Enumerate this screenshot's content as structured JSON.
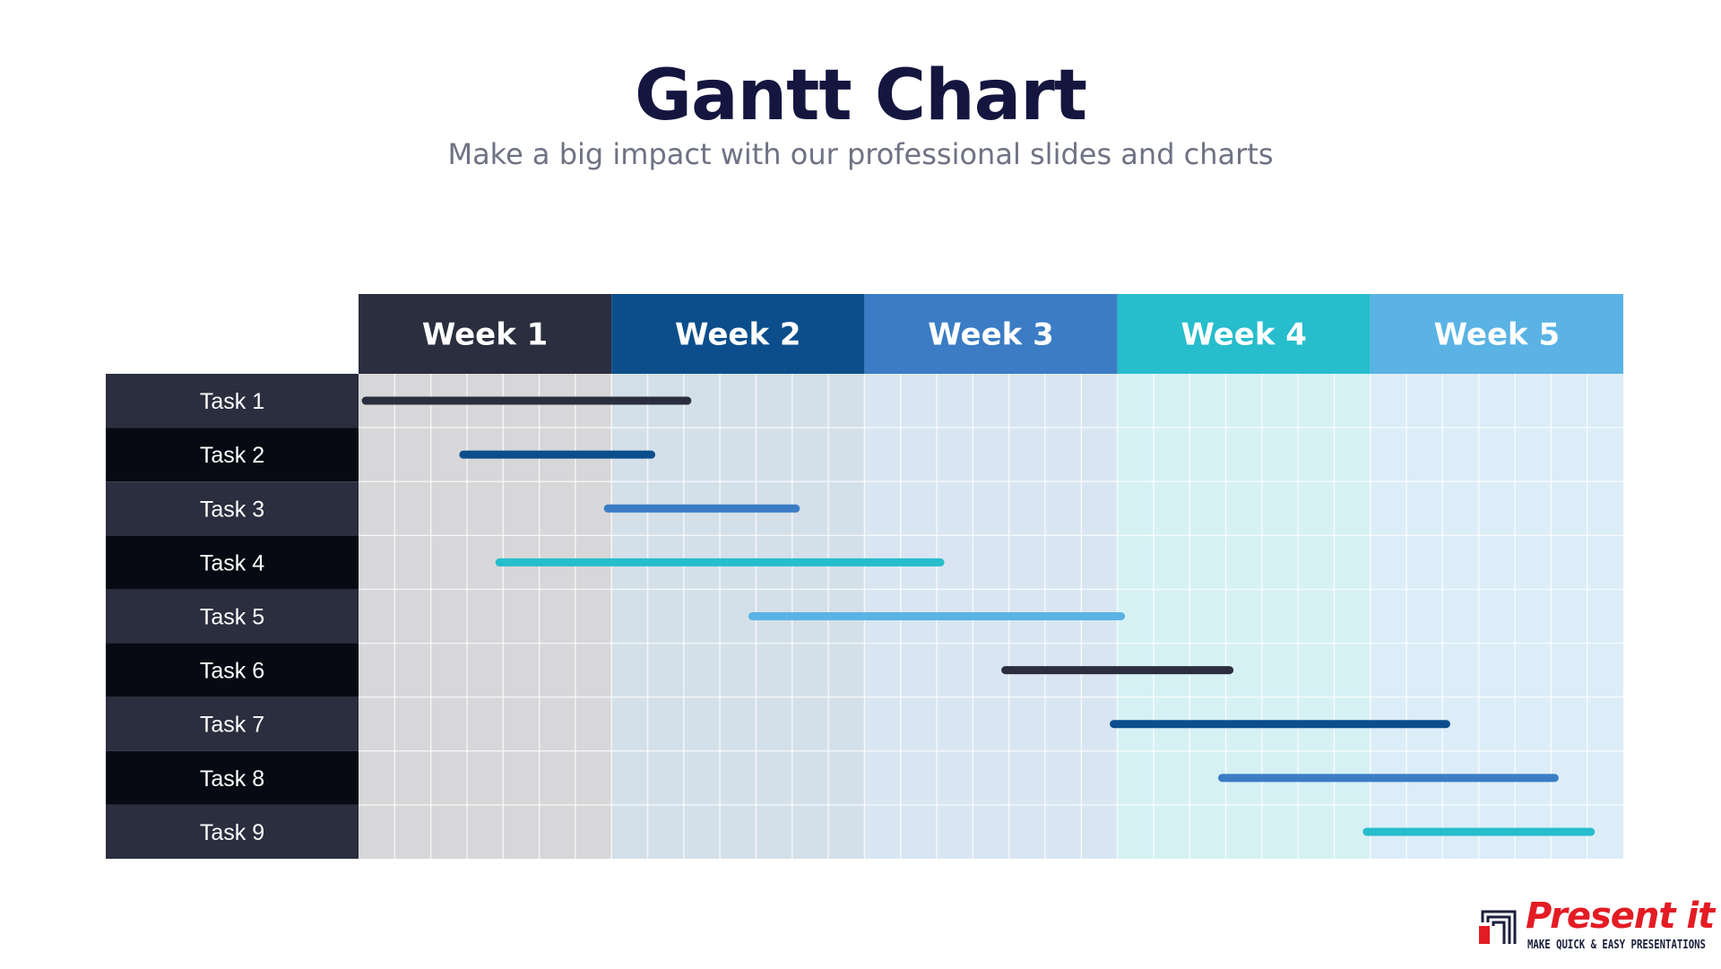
{
  "header": {
    "title": "Gantt Chart",
    "subtitle": "Make a big impact with our professional slides and charts"
  },
  "chart_data": {
    "type": "gantt",
    "columns": [
      "Week 1",
      "Week 2",
      "Week 3",
      "Week 4",
      "Week 5"
    ],
    "subdivisions_per_column": 7,
    "column_colors": [
      "#2b2e3e",
      "#0c4e8c",
      "#3b7cc4",
      "#26bdcc",
      "#5ab3e4"
    ],
    "column_tints": [
      "#d7d7d9",
      "#d4e0e9",
      "#d9e6f2",
      "#d6f1f4",
      "#dcedf8"
    ],
    "tasks": [
      {
        "label": "Task 1",
        "start": 0.2,
        "end": 9.1,
        "color": "#2b2e3e"
      },
      {
        "label": "Task 2",
        "start": 2.9,
        "end": 8.1,
        "color": "#0c4e8c"
      },
      {
        "label": "Task 3",
        "start": 6.9,
        "end": 12.1,
        "color": "#3b7cc4"
      },
      {
        "label": "Task 4",
        "start": 3.9,
        "end": 16.1,
        "color": "#26bdcc"
      },
      {
        "label": "Task 5",
        "start": 10.9,
        "end": 21.1,
        "color": "#5ab3e4"
      },
      {
        "label": "Task 6",
        "start": 17.9,
        "end": 24.1,
        "color": "#2b2e3e"
      },
      {
        "label": "Task 7",
        "start": 20.9,
        "end": 30.1,
        "color": "#0c4e8c"
      },
      {
        "label": "Task 8",
        "start": 23.9,
        "end": 33.1,
        "color": "#3b7cc4"
      },
      {
        "label": "Task 9",
        "start": 27.9,
        "end": 34.1,
        "color": "#26bdcc"
      }
    ],
    "label_row_colors": [
      "#2b2e3e",
      "#070a12"
    ]
  },
  "brand": {
    "name": "Present it !",
    "tagline": "MAKE QUICK & EASY PRESENTATIONS"
  }
}
